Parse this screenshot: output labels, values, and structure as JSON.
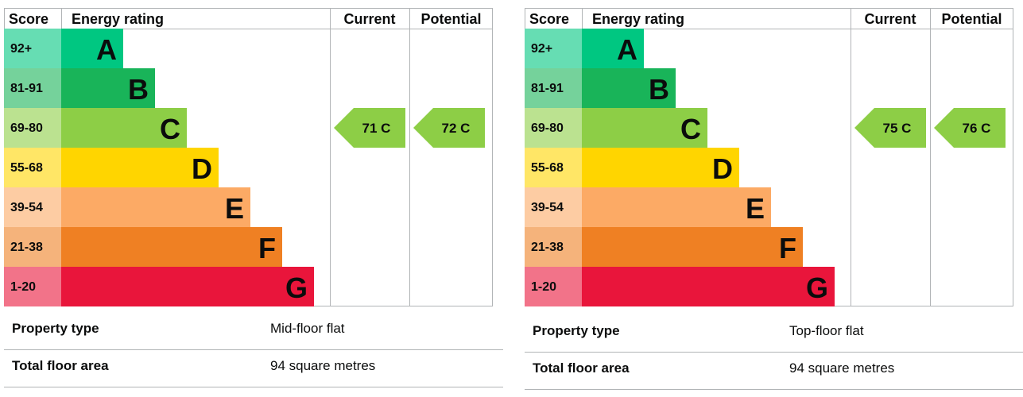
{
  "chart_data": [
    {
      "type": "table",
      "columns": [
        "Score",
        "Energy rating",
        "Current",
        "Potential"
      ],
      "bands": [
        {
          "score": "92+",
          "rating": "A",
          "color": "#00c781"
        },
        {
          "score": "81-91",
          "rating": "B",
          "color": "#19b459"
        },
        {
          "score": "69-80",
          "rating": "C",
          "color": "#8dce46"
        },
        {
          "score": "55-68",
          "rating": "D",
          "color": "#ffd500"
        },
        {
          "score": "39-54",
          "rating": "E",
          "color": "#fcaa65"
        },
        {
          "score": "21-38",
          "rating": "F",
          "color": "#ef8023"
        },
        {
          "score": "1-20",
          "rating": "G",
          "color": "#e9153b"
        }
      ],
      "current": {
        "value": 71,
        "rating": "C",
        "label": "71 C"
      },
      "potential": {
        "value": 72,
        "rating": "C",
        "label": "72 C"
      }
    },
    {
      "type": "table",
      "columns": [
        "Score",
        "Energy rating",
        "Current",
        "Potential"
      ],
      "bands": [
        {
          "score": "92+",
          "rating": "A",
          "color": "#00c781"
        },
        {
          "score": "81-91",
          "rating": "B",
          "color": "#19b459"
        },
        {
          "score": "69-80",
          "rating": "C",
          "color": "#8dce46"
        },
        {
          "score": "55-68",
          "rating": "D",
          "color": "#ffd500"
        },
        {
          "score": "39-54",
          "rating": "E",
          "color": "#fcaa65"
        },
        {
          "score": "21-38",
          "rating": "F",
          "color": "#ef8023"
        },
        {
          "score": "1-20",
          "rating": "G",
          "color": "#e9153b"
        }
      ],
      "current": {
        "value": 75,
        "rating": "C",
        "label": "75 C"
      },
      "potential": {
        "value": 76,
        "rating": "C",
        "label": "76 C"
      }
    }
  ],
  "properties": [
    {
      "rows": [
        {
          "label": "Property type",
          "value": "Mid-floor flat"
        },
        {
          "label": "Total floor area",
          "value": "94 square metres"
        }
      ]
    },
    {
      "rows": [
        {
          "label": "Property type",
          "value": "Top-floor flat"
        },
        {
          "label": "Total floor area",
          "value": "94 square metres"
        }
      ]
    }
  ]
}
